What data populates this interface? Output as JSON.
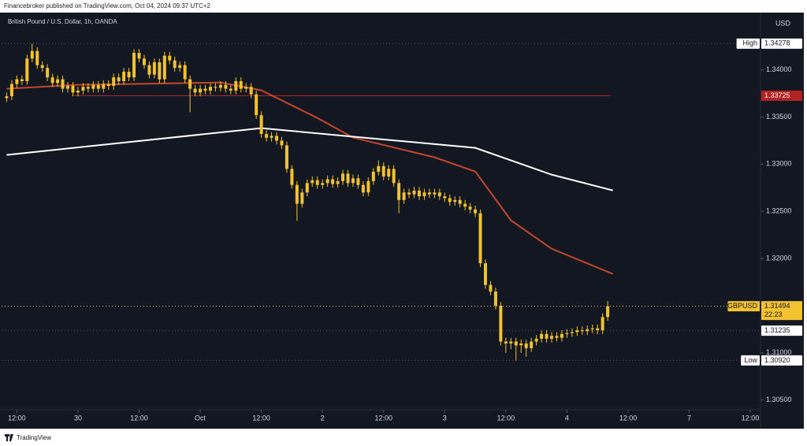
{
  "header": "Financebroker published on TradingView.com, Oct 04, 2024 09:37 UTC+2",
  "footer": "TradingView",
  "chart_data": {
    "type": "candlestick",
    "title": "British Pound / U.S. Dollar, 1h, OANDA",
    "currency": "USD",
    "color": "#f2c230",
    "xlim": [
      -1,
      148
    ],
    "ylim": [
      1.3023,
      1.3459
    ],
    "grid": false,
    "xticks": [
      {
        "value": 2,
        "label": "12:00"
      },
      {
        "value": 14,
        "label": "30"
      },
      {
        "value": 26,
        "label": "12:00"
      },
      {
        "value": 38,
        "label": "Oct"
      },
      {
        "value": 50,
        "label": "12:00"
      },
      {
        "value": 62,
        "label": "2"
      },
      {
        "value": 74,
        "label": "12:00"
      },
      {
        "value": 86,
        "label": "3"
      },
      {
        "value": 98,
        "label": "12:00"
      },
      {
        "value": 110,
        "label": "4"
      },
      {
        "value": 122,
        "label": "12:00"
      },
      {
        "value": 134,
        "label": "7"
      },
      {
        "value": 146,
        "label": "12:00"
      }
    ],
    "yticks": [
      {
        "value": 1.34,
        "label": "1.34000"
      },
      {
        "value": 1.335,
        "label": "1.33500"
      },
      {
        "value": 1.33,
        "label": "1.33000"
      },
      {
        "value": 1.325,
        "label": "1.32500"
      },
      {
        "value": 1.32,
        "label": "1.32000"
      },
      {
        "value": 1.31,
        "label": "1.31000"
      },
      {
        "value": 1.305,
        "label": "1.30500"
      }
    ],
    "open": [
      1.337,
      1.3372,
      1.3385,
      1.339,
      1.3388,
      1.3412,
      1.342,
      1.3405,
      1.3402,
      1.3392,
      1.3386,
      1.339,
      1.338,
      1.3383,
      1.3376,
      1.3378,
      1.3382,
      1.338,
      1.3384,
      1.338,
      1.3385,
      1.3383,
      1.3392,
      1.3388,
      1.3398,
      1.3392,
      1.3418,
      1.3412,
      1.3405,
      1.3395,
      1.3408,
      1.339,
      1.3415,
      1.341,
      1.3402,
      1.3405,
      1.339,
      1.338,
      1.3376,
      1.338,
      1.3378,
      1.3382,
      1.3381,
      1.3384,
      1.338,
      1.3378,
      1.3388,
      1.338,
      1.3382,
      1.3374,
      1.3352,
      1.3332,
      1.3328,
      1.333,
      1.3325,
      1.332,
      1.3295,
      1.3278,
      1.3258,
      1.327,
      1.328,
      1.3283,
      1.3278,
      1.328,
      1.3284,
      1.3279,
      1.3282,
      1.329,
      1.328,
      1.3285,
      1.3278,
      1.327,
      1.3282,
      1.3292,
      1.3298,
      1.3287,
      1.3295,
      1.328,
      1.3262,
      1.327,
      1.3268,
      1.3272,
      1.3266,
      1.327,
      1.3268,
      1.327,
      1.3266,
      1.3264,
      1.326,
      1.3262,
      1.3258,
      1.3255,
      1.3252,
      1.3248,
      1.3195,
      1.3172,
      1.3165,
      1.315,
      1.3112,
      1.311,
      1.3112,
      1.3108,
      1.311,
      1.3105,
      1.3112,
      1.3115,
      1.312,
      1.3115,
      1.3118,
      1.3116,
      1.312,
      1.3121,
      1.3122,
      1.3124,
      1.3123,
      1.3125,
      1.3126,
      1.3124,
      1.3138
    ],
    "high": [
      1.3376,
      1.3389,
      1.3394,
      1.3394,
      1.3416,
      1.34278,
      1.3424,
      1.3409,
      1.3406,
      1.3396,
      1.3394,
      1.3394,
      1.3387,
      1.3387,
      1.3382,
      1.3386,
      1.3386,
      1.3388,
      1.3388,
      1.3389,
      1.3389,
      1.3396,
      1.3396,
      1.3402,
      1.3402,
      1.3422,
      1.3422,
      1.3416,
      1.3409,
      1.3412,
      1.3412,
      1.3419,
      1.3419,
      1.3414,
      1.3409,
      1.3409,
      1.3394,
      1.3384,
      1.3384,
      1.3384,
      1.3386,
      1.3386,
      1.3388,
      1.3388,
      1.3384,
      1.3392,
      1.3392,
      1.3386,
      1.3386,
      1.3378,
      1.3356,
      1.3336,
      1.3334,
      1.3334,
      1.3329,
      1.3324,
      1.3299,
      1.3282,
      1.3274,
      1.3284,
      1.3287,
      1.3287,
      1.3284,
      1.3288,
      1.3288,
      1.3286,
      1.3294,
      1.3294,
      1.3289,
      1.3289,
      1.3282,
      1.3286,
      1.3296,
      1.3304,
      1.3302,
      1.3299,
      1.3299,
      1.3284,
      1.3274,
      1.3274,
      1.3276,
      1.3276,
      1.3274,
      1.3274,
      1.3274,
      1.3274,
      1.327,
      1.3268,
      1.3266,
      1.3266,
      1.3262,
      1.3259,
      1.3256,
      1.3252,
      1.3199,
      1.3176,
      1.3169,
      1.3154,
      1.3116,
      1.3116,
      1.3116,
      1.3114,
      1.3114,
      1.3116,
      1.3119,
      1.3124,
      1.3124,
      1.3122,
      1.3122,
      1.3124,
      1.3125,
      1.3126,
      1.3128,
      1.3128,
      1.3129,
      1.313,
      1.313,
      1.3142,
      1.3155
    ],
    "low": [
      1.3366,
      1.3368,
      1.3381,
      1.3384,
      1.3384,
      1.3408,
      1.3401,
      1.3398,
      1.3388,
      1.3382,
      1.3382,
      1.3376,
      1.3376,
      1.3372,
      1.3372,
      1.3374,
      1.3376,
      1.3376,
      1.3376,
      1.3376,
      1.3379,
      1.3379,
      1.3384,
      1.3384,
      1.3388,
      1.3388,
      1.3408,
      1.3401,
      1.3391,
      1.3391,
      1.3386,
      1.3386,
      1.3406,
      1.3398,
      1.3398,
      1.3386,
      1.3355,
      1.3372,
      1.3372,
      1.3374,
      1.3374,
      1.3377,
      1.3377,
      1.3376,
      1.3374,
      1.3374,
      1.3376,
      1.3376,
      1.337,
      1.3348,
      1.3328,
      1.3324,
      1.3324,
      1.3321,
      1.3316,
      1.3291,
      1.3274,
      1.324,
      1.3254,
      1.3266,
      1.3276,
      1.3274,
      1.3274,
      1.3276,
      1.3275,
      1.3275,
      1.3278,
      1.3276,
      1.3276,
      1.3274,
      1.3266,
      1.3266,
      1.3278,
      1.3288,
      1.3283,
      1.3283,
      1.3276,
      1.3248,
      1.3258,
      1.3264,
      1.3264,
      1.3262,
      1.3262,
      1.3264,
      1.3264,
      1.3262,
      1.326,
      1.3256,
      1.3256,
      1.3254,
      1.3251,
      1.3248,
      1.3244,
      1.3191,
      1.3168,
      1.3161,
      1.3146,
      1.3108,
      1.31,
      1.3104,
      1.3092,
      1.31,
      1.3096,
      1.3101,
      1.3108,
      1.3111,
      1.3111,
      1.3111,
      1.3112,
      1.3112,
      1.3116,
      1.3117,
      1.3118,
      1.3119,
      1.3119,
      1.3121,
      1.312,
      1.312,
      1.3134
    ],
    "close": [
      1.3372,
      1.3385,
      1.339,
      1.3388,
      1.3412,
      1.342,
      1.3405,
      1.3402,
      1.3392,
      1.3386,
      1.339,
      1.338,
      1.3383,
      1.3376,
      1.3378,
      1.3382,
      1.338,
      1.3384,
      1.338,
      1.3385,
      1.3383,
      1.3392,
      1.3388,
      1.3398,
      1.3392,
      1.3418,
      1.3412,
      1.3405,
      1.3395,
      1.3408,
      1.339,
      1.3415,
      1.341,
      1.3402,
      1.3405,
      1.339,
      1.338,
      1.3376,
      1.338,
      1.3378,
      1.3382,
      1.3381,
      1.3384,
      1.338,
      1.3378,
      1.3388,
      1.338,
      1.3382,
      1.3374,
      1.3352,
      1.3332,
      1.3328,
      1.333,
      1.3325,
      1.332,
      1.3295,
      1.3278,
      1.3258,
      1.327,
      1.328,
      1.3283,
      1.3278,
      1.328,
      1.3284,
      1.3279,
      1.3282,
      1.329,
      1.328,
      1.3285,
      1.3278,
      1.327,
      1.3282,
      1.3292,
      1.3298,
      1.3287,
      1.3295,
      1.328,
      1.3262,
      1.327,
      1.3268,
      1.3272,
      1.3266,
      1.327,
      1.3268,
      1.327,
      1.3266,
      1.3264,
      1.326,
      1.3262,
      1.3258,
      1.3255,
      1.3252,
      1.3248,
      1.3195,
      1.3172,
      1.3165,
      1.315,
      1.3112,
      1.311,
      1.3112,
      1.3108,
      1.311,
      1.3105,
      1.3112,
      1.3115,
      1.312,
      1.3115,
      1.3118,
      1.3116,
      1.312,
      1.3121,
      1.3122,
      1.3124,
      1.3123,
      1.3125,
      1.3126,
      1.3124,
      1.3138,
      1.31494
    ],
    "lines": [
      {
        "color": "#c4472b",
        "x": [
          0,
          14,
          42,
          50,
          61,
          68,
          84,
          92,
          99,
          107,
          119
        ],
        "values": [
          1.338,
          1.33841,
          1.33866,
          1.33783,
          1.3349,
          1.33282,
          1.33073,
          1.32922,
          1.32405,
          1.32104,
          1.31837
        ]
      },
      {
        "color": "#ffffff",
        "x": [
          0,
          50,
          70,
          92,
          107,
          119
        ],
        "values": [
          1.33098,
          1.33382,
          1.33282,
          1.33173,
          1.32889,
          1.32722
        ]
      }
    ],
    "levels": [
      {
        "name": "High",
        "value": 1.34278
      },
      {
        "value": 1.33725,
        "color": "#b22222"
      },
      {
        "name": "GBPUSD",
        "value": 1.31494,
        "countdown": "22:23",
        "color": "#f2c230"
      },
      {
        "value": 1.31235
      },
      {
        "name": "Low",
        "value": 1.3092,
        "value_label": "1.30920"
      }
    ]
  }
}
